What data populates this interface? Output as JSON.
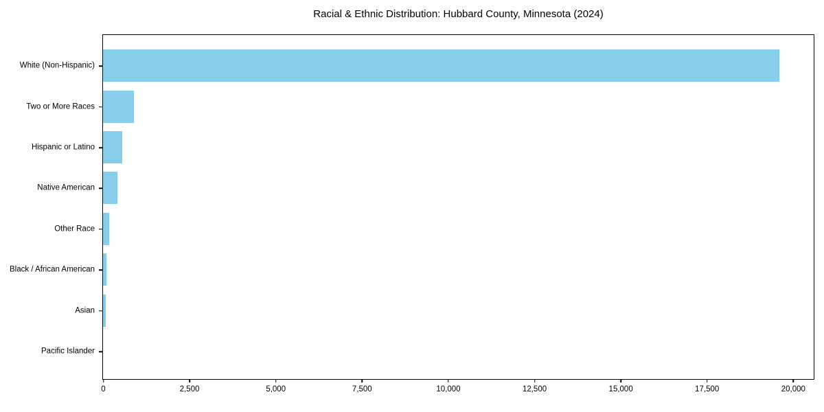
{
  "title": "Racial & Ethnic Distribution: Hubbard County, Minnesota (2024)",
  "colors": {
    "bar": "#87CEEB",
    "axis": "#000000",
    "background": "#ffffff",
    "text": "#000000"
  },
  "chart_data": {
    "type": "bar",
    "orientation": "horizontal",
    "title": "Racial & Ethnic Distribution: Hubbard County, Minnesota (2024)",
    "xlabel": "",
    "ylabel": "",
    "categories": [
      "White (Non-Hispanic)",
      "Two or More Races",
      "Hispanic or Latino",
      "Native American",
      "Other Race",
      "Black / African American",
      "Asian",
      "Pacific Islander"
    ],
    "values": [
      19590,
      900,
      550,
      420,
      170,
      100,
      80,
      0
    ],
    "bar_color": "#87CEEB",
    "xlim": [
      0,
      20580
    ],
    "x_ticks": [
      0,
      2500,
      5000,
      7500,
      10000,
      12500,
      15000,
      17500,
      20000
    ],
    "x_tick_labels": [
      "0",
      "2,500",
      "5,000",
      "7,500",
      "10,000",
      "12,500",
      "15,000",
      "17,500",
      "20,000"
    ],
    "grid": false,
    "legend": false
  }
}
